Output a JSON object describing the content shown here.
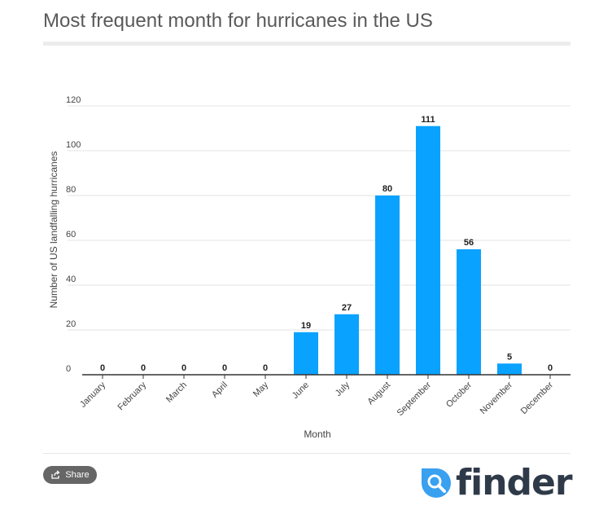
{
  "title": "Most frequent month for hurricanes in the US",
  "share_label": "Share",
  "logo_text": "finder",
  "colors": {
    "bar": "#0aa2ff",
    "logo_mark": "#3aa0f0",
    "logo_text": "#2f3a49"
  },
  "chart_data": {
    "type": "bar",
    "categories": [
      "January",
      "February",
      "March",
      "April",
      "May",
      "June",
      "July",
      "August",
      "September",
      "October",
      "November",
      "December"
    ],
    "values": [
      0,
      0,
      0,
      0,
      0,
      19,
      27,
      80,
      111,
      56,
      5,
      0
    ],
    "xlabel": "Month",
    "ylabel": "Number of US landfalling hurricanes",
    "ylim": [
      0,
      120
    ],
    "yticks": [
      0,
      20,
      40,
      60,
      80,
      100,
      120
    ],
    "grid": true,
    "data_labels": true
  }
}
